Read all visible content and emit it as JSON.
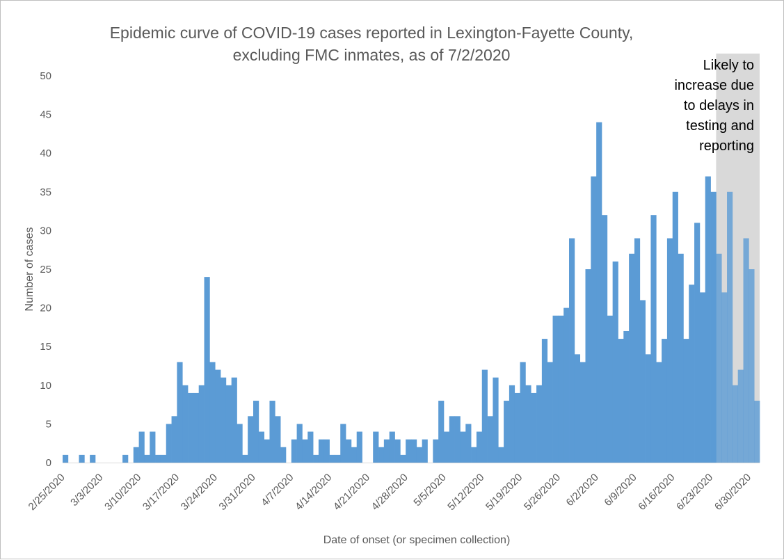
{
  "chart_data": {
    "type": "bar",
    "title": [
      "Epidemic curve of COVID-19 cases reported in Lexington-Fayette County,",
      "excluding FMC inmates, as of 7/2/2020"
    ],
    "xlabel": "Date of onset (or specimen collection)",
    "ylabel": "Number of cases",
    "ylim": [
      0,
      50
    ],
    "yticks": [
      0,
      5,
      10,
      15,
      20,
      25,
      30,
      35,
      40,
      45,
      50
    ],
    "grid": false,
    "x_start": "2/25/2020",
    "x_end": "7/1/2020",
    "x_tick_labels": [
      "2/25/2020",
      "3/3/2020",
      "3/10/2020",
      "3/17/2020",
      "3/24/2020",
      "3/31/2020",
      "4/7/2020",
      "4/14/2020",
      "4/21/2020",
      "4/28/2020",
      "5/5/2020",
      "5/12/2020",
      "5/19/2020",
      "5/26/2020",
      "6/2/2020",
      "6/9/2020",
      "6/16/2020",
      "6/23/2020",
      "6/30/2020"
    ],
    "values": [
      1,
      0,
      0,
      1,
      0,
      1,
      0,
      0,
      0,
      0,
      0,
      1,
      0,
      2,
      4,
      1,
      4,
      1,
      1,
      5,
      6,
      13,
      10,
      9,
      9,
      10,
      24,
      13,
      12,
      11,
      10,
      11,
      5,
      1,
      6,
      8,
      4,
      3,
      8,
      6,
      2,
      0,
      3,
      5,
      3,
      4,
      1,
      3,
      3,
      1,
      1,
      5,
      3,
      2,
      4,
      0,
      0,
      4,
      2,
      3,
      4,
      3,
      1,
      3,
      3,
      2,
      3,
      0,
      3,
      8,
      4,
      6,
      6,
      4,
      5,
      2,
      4,
      12,
      6,
      11,
      2,
      8,
      10,
      9,
      13,
      10,
      9,
      10,
      16,
      13,
      19,
      19,
      20,
      29,
      14,
      13,
      25,
      37,
      44,
      32,
      19,
      26,
      16,
      17,
      27,
      29,
      21,
      14,
      32,
      13,
      16,
      29,
      35,
      27,
      16,
      23,
      31,
      22,
      37,
      35,
      27,
      22,
      35,
      10,
      12,
      29,
      25,
      8
    ],
    "bar_color": "#5b9bd5",
    "shaded_region": {
      "start": "6/24/2020",
      "end": "7/1/2020",
      "color": "#d9d9d9",
      "label": [
        "Likely to",
        "increase due",
        "to delays in",
        "testing and",
        "reporting"
      ]
    }
  }
}
